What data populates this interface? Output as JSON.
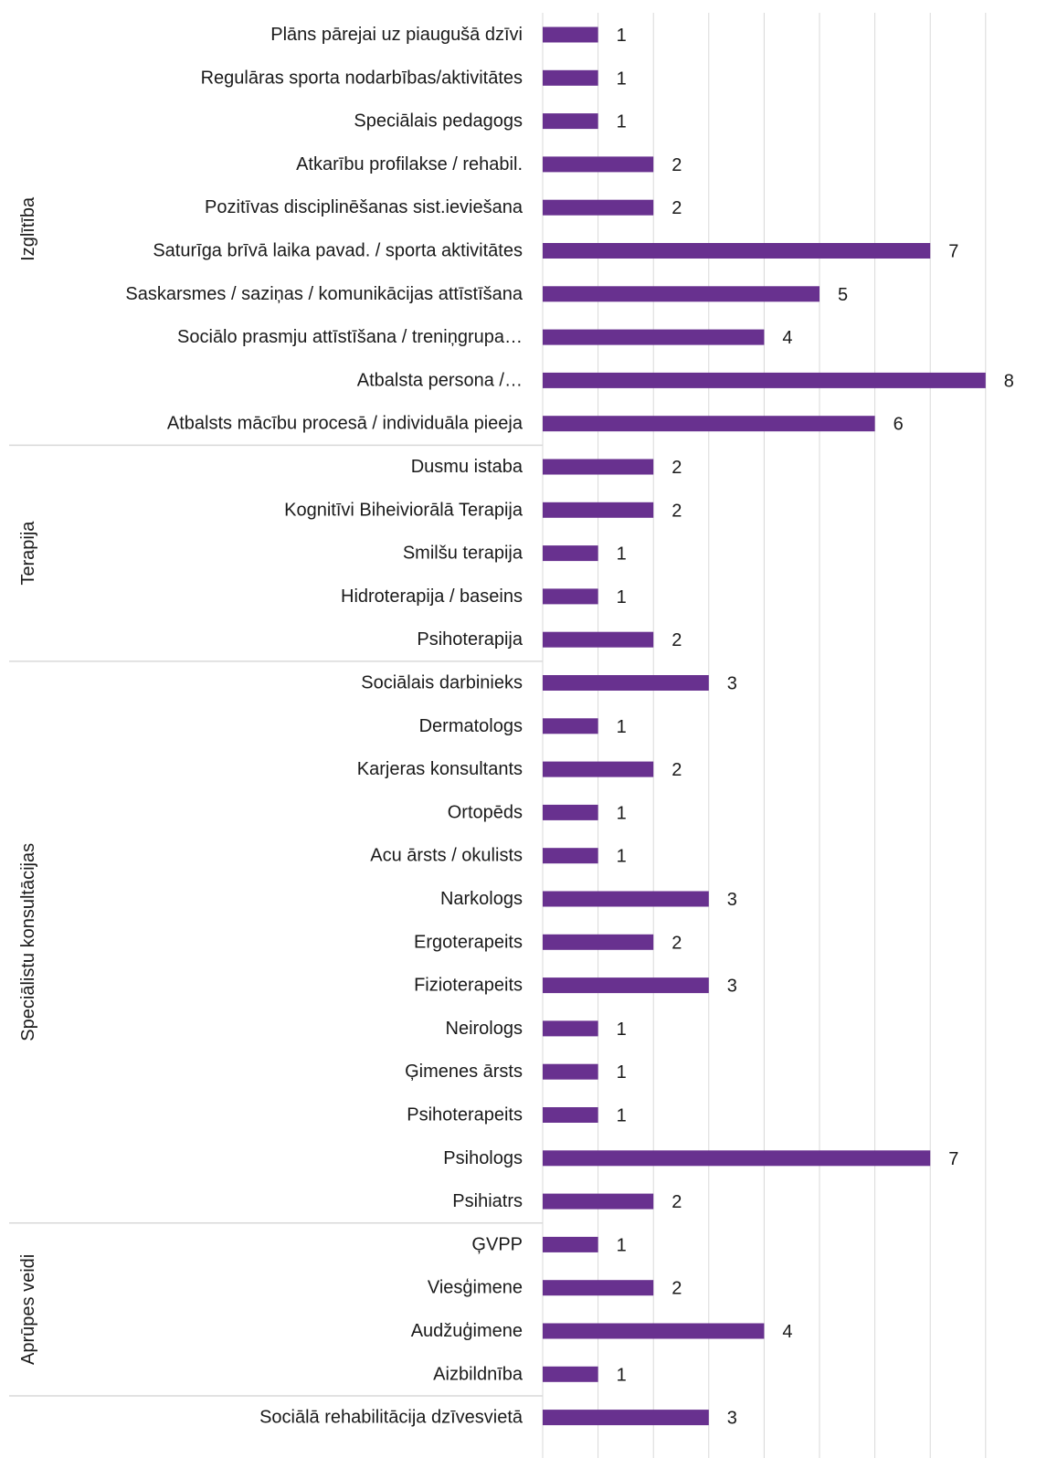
{
  "chart_data": {
    "type": "bar",
    "orientation": "horizontal",
    "title": "",
    "xlabel": "",
    "ylabel": "",
    "xlim": [
      0,
      8
    ],
    "grid": "vertical",
    "bar_color": "#68318f",
    "groups": [
      {
        "name": "Izglītība",
        "categories": [
          "Plāns pārejai uz piaugušā dzīvi",
          "Regulāras sporta nodarbības/aktivitātes",
          "Speciālais pedagogs",
          "Atkarību profilakse / rehabil.",
          "Pozitīvas disciplinēšanas sist.ieviešana",
          "Saturīga brīvā laika pavad. / sporta aktivitātes",
          "Saskarsmes / saziņas / komunikācijas attīstīšana",
          "Sociālo prasmju attīstīšana / treniņgrupa…",
          "Atbalsta persona /…",
          "Atbalsts mācību procesā / individuāla pieeja"
        ],
        "values": [
          1,
          1,
          1,
          2,
          2,
          7,
          5,
          4,
          8,
          6
        ]
      },
      {
        "name": "Terapija",
        "categories": [
          "Dusmu istaba",
          "Kognitīvi Biheiviorālā Terapija",
          "Smilšu terapija",
          "Hidroterapija / baseins",
          "Psihoterapija"
        ],
        "values": [
          2,
          2,
          1,
          1,
          2
        ]
      },
      {
        "name": "Speciālistu konsultācijas",
        "categories": [
          "Sociālais darbinieks",
          "Dermatologs",
          "Karjeras konsultants",
          "Ortopēds",
          "Acu ārsts / okulists",
          "Narkologs",
          "Ergoterapeits",
          "Fizioterapeits",
          "Neirologs",
          "Ģimenes ārsts",
          "Psihoterapeits",
          "Psihologs",
          "Psihiatrs"
        ],
        "values": [
          3,
          1,
          2,
          1,
          1,
          3,
          2,
          3,
          1,
          1,
          1,
          7,
          2
        ]
      },
      {
        "name": "Aprūpes veidi",
        "categories": [
          "ĢVPP",
          "Viesģimene",
          "Audžuģimene",
          "Aizbildnība"
        ],
        "values": [
          1,
          2,
          4,
          1
        ]
      },
      {
        "name": "",
        "categories": [
          "Sociālā rehabilitācija dzīvesvietā"
        ],
        "values": [
          3
        ]
      }
    ]
  }
}
